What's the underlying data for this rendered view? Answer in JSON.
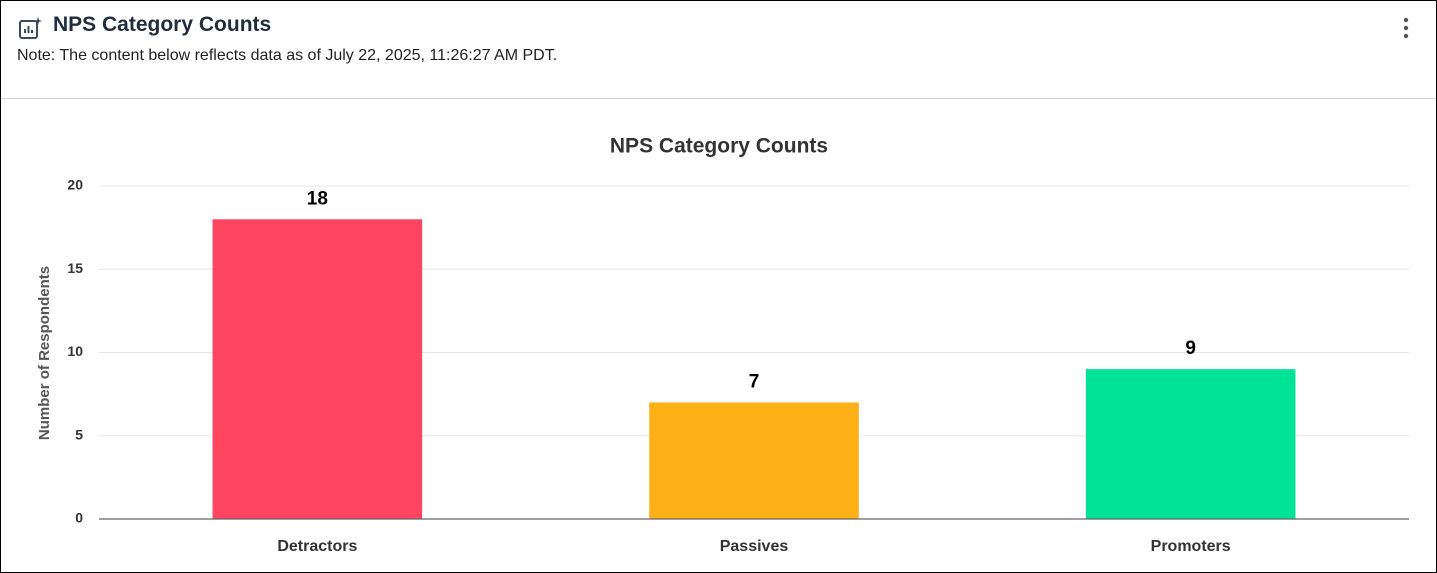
{
  "header": {
    "title": "NPS Category Counts",
    "note": "Note: The content below reflects data as of July 22, 2025, 11:26:27 AM PDT."
  },
  "chart_data": {
    "type": "bar",
    "title": "NPS Category Counts",
    "y_label": "Number of Respondents",
    "categories": [
      "Detractors",
      "Passives",
      "Promoters"
    ],
    "values": [
      18,
      7,
      9
    ],
    "colors": [
      "#ff4560",
      "#feb019",
      "#00e396"
    ],
    "ylim": [
      0,
      20
    ],
    "yticks": [
      0,
      5,
      10,
      15,
      20
    ],
    "grid": true
  }
}
